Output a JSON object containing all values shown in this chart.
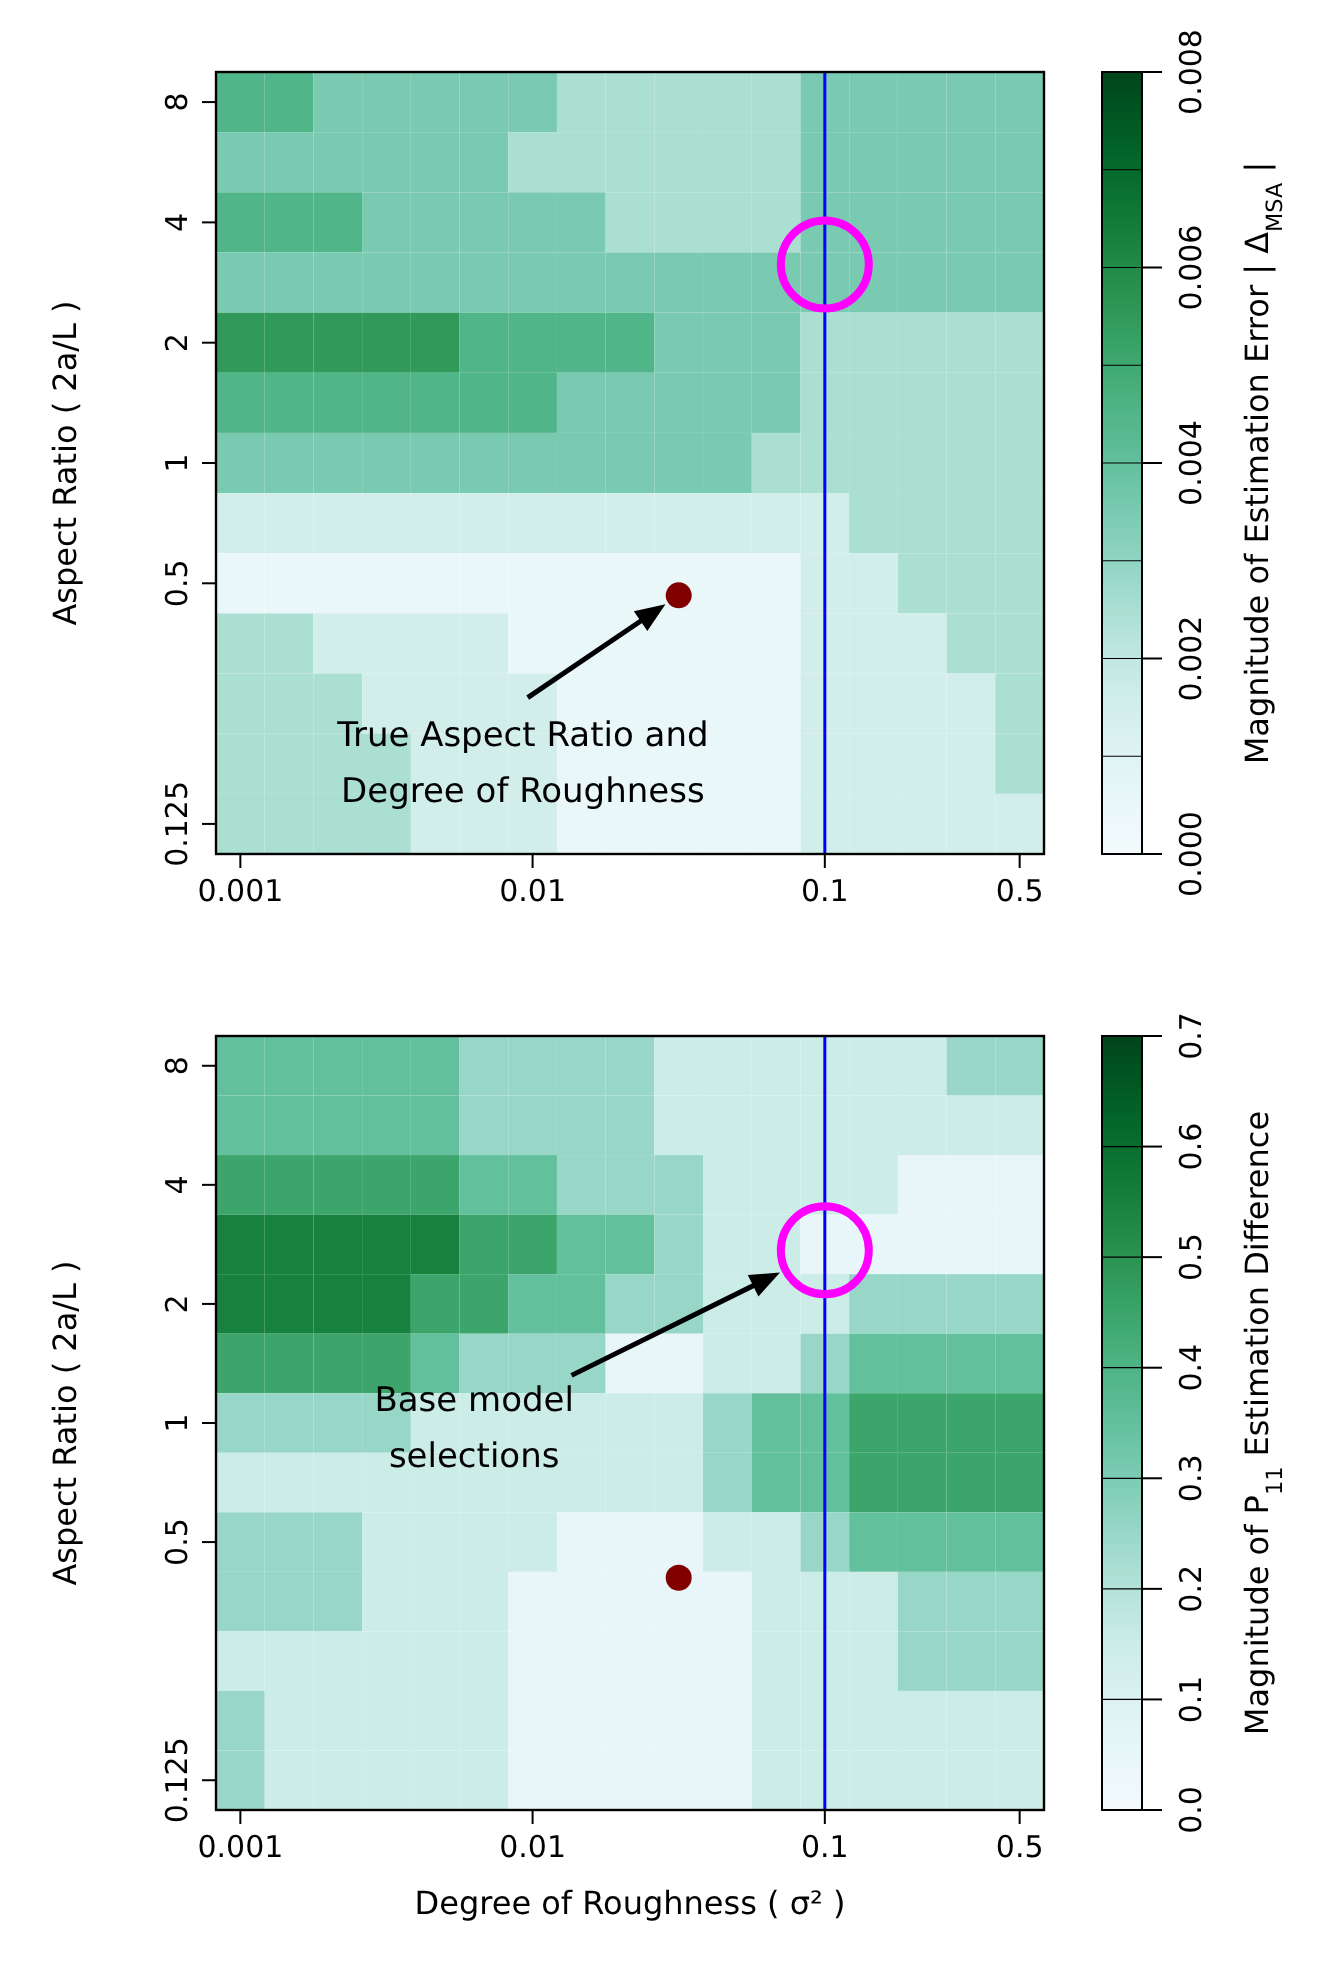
{
  "chart_data": [
    {
      "type": "heatmap",
      "ylabel": "Aspect Ratio ( 2a/L )",
      "clabel": "Magnitude of Estimation Error | Δ$_{MSA}$ |",
      "categories": [
        "0.001",
        null,
        null,
        null,
        null,
        null,
        "0.01",
        null,
        null,
        null,
        null,
        null,
        "0.1",
        null,
        null,
        null,
        "0.5"
      ],
      "y_categories": [
        "8",
        null,
        "4",
        null,
        "2",
        null,
        "1",
        null,
        "0.5",
        null,
        null,
        null,
        "0.125"
      ],
      "cells": [
        [
          0.0045,
          0.0045,
          0.0035,
          0.0035,
          0.0035,
          0.0035,
          0.0035,
          0.0025,
          0.0025,
          0.0025,
          0.0025,
          0.0025,
          0.0035,
          0.0035,
          0.0035,
          0.0035,
          0.0035
        ],
        [
          0.0035,
          0.0035,
          0.0035,
          0.0035,
          0.0035,
          0.0035,
          0.0025,
          0.0025,
          0.0025,
          0.0025,
          0.0025,
          0.0025,
          0.0035,
          0.0035,
          0.0035,
          0.0035,
          0.0035
        ],
        [
          0.0045,
          0.0045,
          0.0045,
          0.0035,
          0.0035,
          0.0035,
          0.0035,
          0.0035,
          0.0025,
          0.0025,
          0.0025,
          0.0025,
          0.0035,
          0.0035,
          0.0035,
          0.0035,
          0.0035
        ],
        [
          0.0035,
          0.0035,
          0.0035,
          0.0035,
          0.0035,
          0.0035,
          0.0035,
          0.0035,
          0.0035,
          0.0035,
          0.0035,
          0.0035,
          0.0035,
          0.0035,
          0.0035,
          0.0035,
          0.0035
        ],
        [
          0.0055,
          0.0055,
          0.0055,
          0.0055,
          0.0055,
          0.0045,
          0.0045,
          0.0045,
          0.0045,
          0.0035,
          0.0035,
          0.0035,
          0.0025,
          0.0025,
          0.0025,
          0.0025,
          0.0025
        ],
        [
          0.0045,
          0.0045,
          0.0045,
          0.0045,
          0.0045,
          0.0045,
          0.0045,
          0.0035,
          0.0035,
          0.0035,
          0.0035,
          0.0035,
          0.0025,
          0.0025,
          0.0025,
          0.0025,
          0.0025
        ],
        [
          0.0035,
          0.0035,
          0.0035,
          0.0035,
          0.0035,
          0.0035,
          0.0035,
          0.0035,
          0.0035,
          0.0035,
          0.0035,
          0.0025,
          0.0025,
          0.0025,
          0.0025,
          0.0025,
          0.0025
        ],
        [
          0.0015,
          0.0015,
          0.0015,
          0.0015,
          0.0015,
          0.0015,
          0.0015,
          0.0015,
          0.0015,
          0.0015,
          0.0015,
          0.0015,
          0.0015,
          0.0025,
          0.0025,
          0.0025,
          0.0025
        ],
        [
          0.0005,
          0.0005,
          0.0005,
          0.0005,
          0.0005,
          0.0005,
          0.0005,
          0.0005,
          0.0005,
          0.0005,
          0.0005,
          0.0005,
          0.0015,
          0.0015,
          0.0025,
          0.0025,
          0.0025
        ],
        [
          0.0025,
          0.0025,
          0.0015,
          0.0015,
          0.0015,
          0.0015,
          0.0005,
          0.0005,
          0.0005,
          0.0005,
          0.0005,
          0.0005,
          0.0015,
          0.0015,
          0.0015,
          0.0025,
          0.0025
        ],
        [
          0.0025,
          0.0025,
          0.0025,
          0.0015,
          0.0015,
          0.0015,
          0.0015,
          0.0005,
          0.0005,
          0.0005,
          0.0005,
          0.0005,
          0.0015,
          0.0015,
          0.0015,
          0.0015,
          0.0025
        ],
        [
          0.0025,
          0.0025,
          0.0025,
          0.0025,
          0.0015,
          0.0015,
          0.0015,
          0.0005,
          0.0005,
          0.0005,
          0.0005,
          0.0005,
          0.0015,
          0.0015,
          0.0015,
          0.0015,
          0.0025
        ],
        [
          0.0025,
          0.0025,
          0.0025,
          0.0025,
          0.0015,
          0.0015,
          0.0015,
          0.0005,
          0.0005,
          0.0005,
          0.0005,
          0.0005,
          0.0015,
          0.0015,
          0.0015,
          0.0015,
          0.0015
        ]
      ],
      "clim": [
        0,
        0.008
      ],
      "cticks": [
        {
          "value": 0,
          "label": "0.000"
        },
        0.002,
        0.004,
        0.006,
        0.008
      ],
      "ref_lines": [
        {
          "axis": "x",
          "value": "0.1",
          "color": "#0000ff"
        }
      ],
      "annotations": [
        "True Aspect Ratio and Degree of Roughness"
      ]
    },
    {
      "type": "heatmap",
      "xlabel": "Degree of Roughness ( σ² )",
      "ylabel": "Aspect Ratio ( 2a/L )",
      "clabel": "Magnitude of  P$_{11}$  Estimation Difference",
      "categories": [
        "0.001",
        null,
        null,
        null,
        null,
        null,
        "0.01",
        null,
        null,
        null,
        null,
        null,
        "0.1",
        null,
        null,
        null,
        "0.5"
      ],
      "y_categories": [
        "8",
        null,
        "4",
        null,
        "2",
        null,
        "1",
        null,
        "0.5",
        null,
        null,
        null,
        "0.125"
      ],
      "cells": [
        [
          0.35,
          0.35,
          0.35,
          0.35,
          0.35,
          0.25,
          0.25,
          0.25,
          0.25,
          0.15,
          0.15,
          0.15,
          0.15,
          0.15,
          0.15,
          0.25,
          0.25
        ],
        [
          0.35,
          0.35,
          0.35,
          0.35,
          0.35,
          0.25,
          0.25,
          0.25,
          0.25,
          0.15,
          0.15,
          0.15,
          0.15,
          0.15,
          0.15,
          0.15,
          0.15
        ],
        [
          0.45,
          0.45,
          0.45,
          0.45,
          0.45,
          0.35,
          0.35,
          0.25,
          0.25,
          0.25,
          0.15,
          0.15,
          0.15,
          0.15,
          0.05,
          0.05,
          0.05
        ],
        [
          0.55,
          0.55,
          0.55,
          0.55,
          0.55,
          0.45,
          0.45,
          0.35,
          0.35,
          0.25,
          0.15,
          0.15,
          0.05,
          0.05,
          0.05,
          0.05,
          0.05
        ],
        [
          0.55,
          0.55,
          0.55,
          0.55,
          0.45,
          0.45,
          0.35,
          0.35,
          0.25,
          0.25,
          0.15,
          0.15,
          0.15,
          0.25,
          0.25,
          0.25,
          0.25
        ],
        [
          0.45,
          0.45,
          0.45,
          0.45,
          0.35,
          0.25,
          0.25,
          0.25,
          0.05,
          0.05,
          0.15,
          0.15,
          0.25,
          0.35,
          0.35,
          0.35,
          0.35
        ],
        [
          0.25,
          0.25,
          0.25,
          0.25,
          0.15,
          0.15,
          0.15,
          0.15,
          0.15,
          0.15,
          0.25,
          0.35,
          0.35,
          0.45,
          0.45,
          0.45,
          0.45
        ],
        [
          0.15,
          0.15,
          0.15,
          0.15,
          0.15,
          0.15,
          0.15,
          0.15,
          0.15,
          0.15,
          0.25,
          0.35,
          0.35,
          0.45,
          0.45,
          0.45,
          0.45
        ],
        [
          0.25,
          0.25,
          0.25,
          0.15,
          0.15,
          0.15,
          0.15,
          0.05,
          0.05,
          0.05,
          0.15,
          0.15,
          0.25,
          0.35,
          0.35,
          0.35,
          0.35
        ],
        [
          0.25,
          0.25,
          0.25,
          0.15,
          0.15,
          0.15,
          0.05,
          0.05,
          0.05,
          0.05,
          0.05,
          0.15,
          0.15,
          0.15,
          0.25,
          0.25,
          0.25
        ],
        [
          0.15,
          0.15,
          0.15,
          0.15,
          0.15,
          0.15,
          0.05,
          0.05,
          0.05,
          0.05,
          0.05,
          0.15,
          0.15,
          0.15,
          0.25,
          0.25,
          0.25
        ],
        [
          0.25,
          0.15,
          0.15,
          0.15,
          0.15,
          0.15,
          0.05,
          0.05,
          0.05,
          0.05,
          0.05,
          0.15,
          0.15,
          0.15,
          0.15,
          0.15,
          0.15
        ],
        [
          0.25,
          0.15,
          0.15,
          0.15,
          0.15,
          0.15,
          0.05,
          0.05,
          0.05,
          0.05,
          0.05,
          0.15,
          0.15,
          0.15,
          0.15,
          0.15,
          0.15
        ]
      ],
      "clim": [
        0,
        0.7
      ],
      "cticks": [
        {
          "value": 0,
          "label": "0.0"
        },
        0.1,
        0.2,
        0.3,
        0.4,
        0.5,
        0.6,
        0.7
      ],
      "ref_lines": [
        {
          "axis": "x",
          "value": "0.1",
          "color": "#0000ff"
        }
      ],
      "annotations": [
        "Base model selections"
      ]
    }
  ]
}
